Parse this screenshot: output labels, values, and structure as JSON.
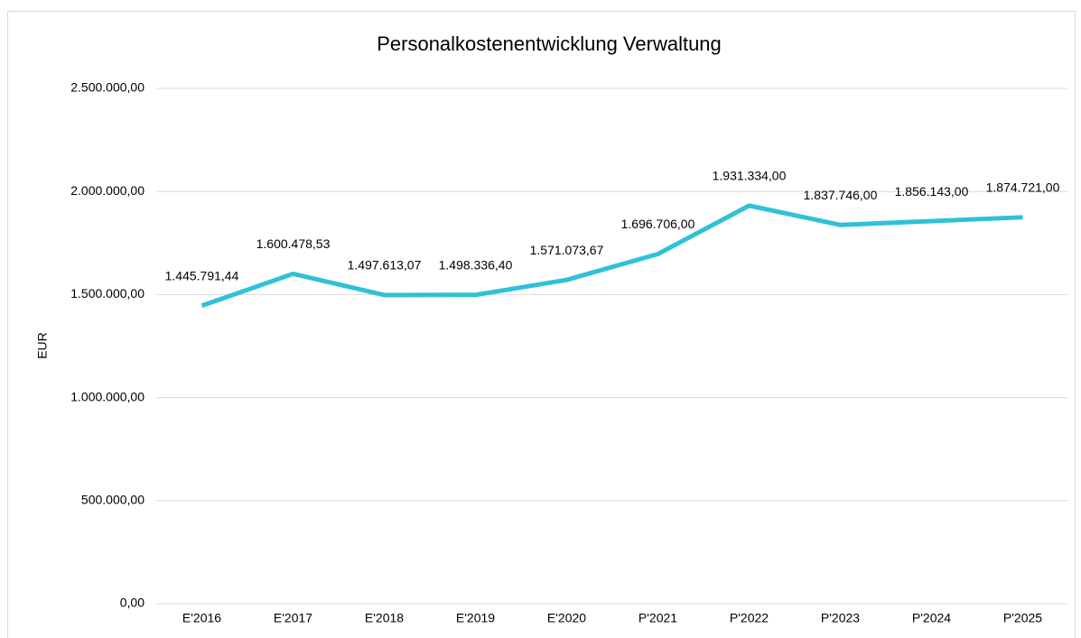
{
  "chart_data": {
    "type": "line",
    "title": "Personalkostenentwicklung Verwaltung",
    "y_label": "EUR",
    "categories": [
      "E'2016",
      "E'2017",
      "E'2018",
      "E'2019",
      "E'2020",
      "P'2021",
      "P'2022",
      "P'2023",
      "P'2024",
      "P'2025"
    ],
    "values": [
      1445791.44,
      1600478.53,
      1497613.07,
      1498336.4,
      1571073.67,
      1696706.0,
      1931334.0,
      1837746.0,
      1856143.0,
      1874721.0
    ],
    "value_labels": [
      "1.445.791,44",
      "1.600.478,53",
      "1.497.613,07",
      "1.498.336,40",
      "1.571.073,67",
      "1.696.706,00",
      "1.931.334,00",
      "1.837.746,00",
      "1.856.143,00",
      "1.874.721,00"
    ],
    "color": "#2fc1d6",
    "ylim": [
      0,
      2500000
    ],
    "yticks": [
      {
        "value": 0,
        "label": "0,00"
      },
      {
        "value": 500000,
        "label": "500.000,00"
      },
      {
        "value": 1000000,
        "label": "1.000.000,00"
      },
      {
        "value": 1500000,
        "label": "1.500.000,00"
      },
      {
        "value": 2000000,
        "label": "2.000.000,00"
      },
      {
        "value": 2500000,
        "label": "2.500.000,00"
      }
    ],
    "grid": true
  }
}
